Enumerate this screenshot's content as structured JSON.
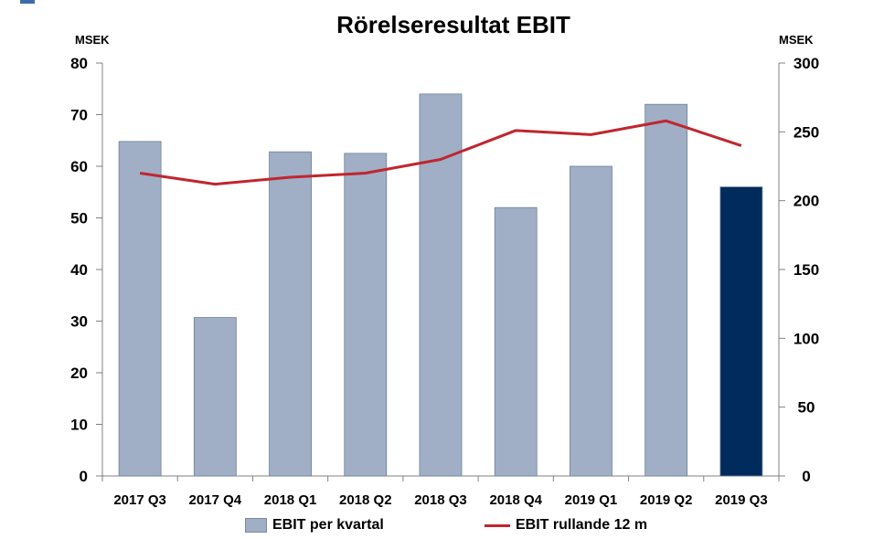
{
  "chart_data": {
    "type": "bar",
    "title": "Rörelseresultat EBIT",
    "ylabel_left": "MSEK",
    "ylabel_right": "MSEK",
    "categories": [
      "2017 Q3",
      "2017 Q4",
      "2018 Q1",
      "2018 Q2",
      "2018 Q3",
      "2018 Q4",
      "2019 Q1",
      "2019 Q2",
      "2019 Q3"
    ],
    "ylim_left": [
      0,
      80
    ],
    "yticks_left": [
      0,
      10,
      20,
      30,
      40,
      50,
      60,
      70,
      80
    ],
    "ylim_right": [
      0,
      300
    ],
    "yticks_right": [
      0,
      50,
      100,
      150,
      200,
      250,
      300
    ],
    "series": [
      {
        "name": "EBIT per kvartal",
        "type": "bar",
        "axis": "left",
        "values": [
          64.8,
          30.7,
          62.8,
          62.5,
          74,
          52,
          60,
          72,
          56
        ],
        "color": "#a0afc6",
        "highlight_color": "#002b5c",
        "highlight_index": 8
      },
      {
        "name": "EBIT rullande 12 m",
        "type": "line",
        "axis": "right",
        "values": [
          220,
          212,
          217,
          220,
          230,
          251,
          248,
          258,
          240
        ],
        "color": "#c0262d"
      }
    ],
    "grid": false,
    "legend_position": "bottom"
  }
}
